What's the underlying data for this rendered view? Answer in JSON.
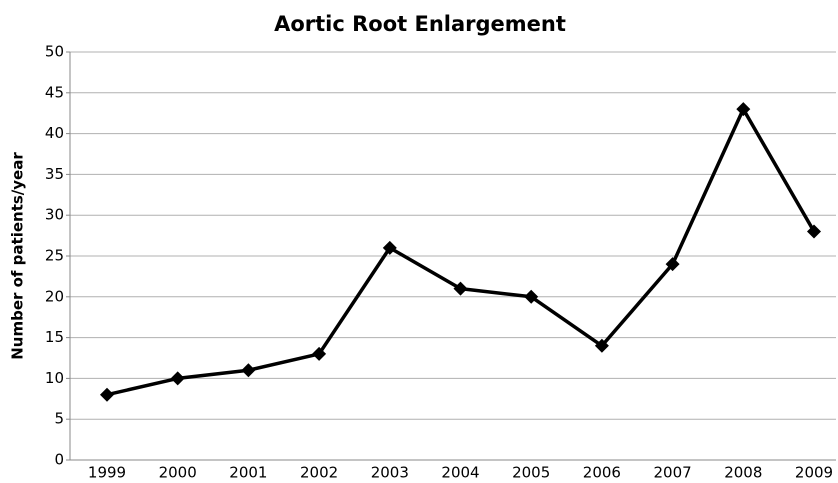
{
  "chart_data": {
    "type": "line",
    "title": "Aortic Root Enlargement",
    "y_label": "Number of patients/year",
    "categories": [
      "1999",
      "2000",
      "2001",
      "2002",
      "2003",
      "2004",
      "2005",
      "2006",
      "2007",
      "2008",
      "2009"
    ],
    "values": [
      8,
      10,
      11,
      13,
      26,
      21,
      20,
      14,
      24,
      43,
      28
    ],
    "color": "#000000",
    "ylim": [
      0,
      50
    ],
    "yticks": [
      0,
      5,
      10,
      15,
      20,
      25,
      30,
      35,
      40,
      45,
      50
    ],
    "grid": true
  }
}
